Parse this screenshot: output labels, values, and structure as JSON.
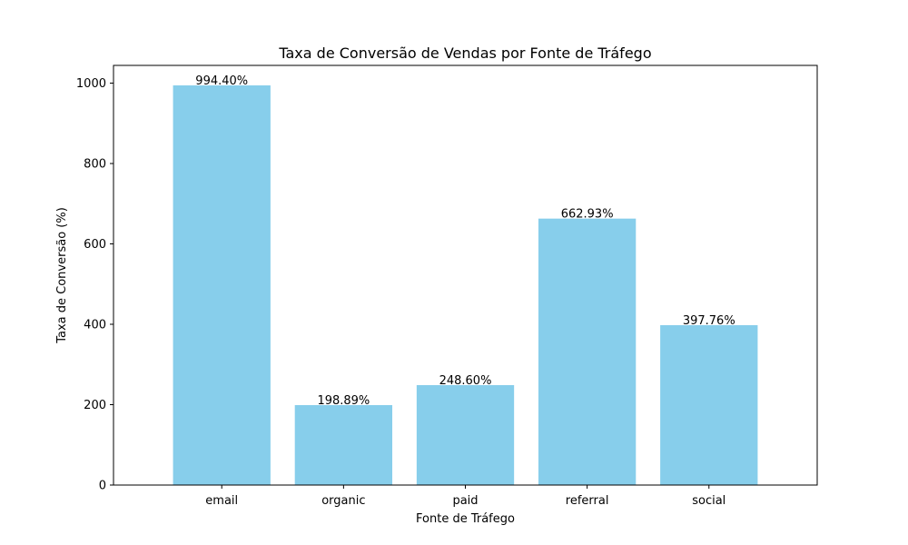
{
  "chart_data": {
    "type": "bar",
    "title": "Taxa de Conversão de Vendas por Fonte de Tráfego",
    "xlabel": "Fonte de Tráfego",
    "ylabel": "Taxa de Conversão (%)",
    "categories": [
      "email",
      "organic",
      "paid",
      "referral",
      "social"
    ],
    "values": [
      994.4,
      198.89,
      248.6,
      662.93,
      397.76
    ],
    "data_labels": [
      "994.40%",
      "198.89%",
      "248.60%",
      "662.93%",
      "397.76%"
    ],
    "yticks": [
      0,
      200,
      400,
      600,
      800,
      1000
    ],
    "ytick_labels": [
      "0",
      "200",
      "400",
      "600",
      "800",
      "1000"
    ],
    "ylim": [
      0,
      1044.12
    ],
    "grid": false,
    "bar_color": "#87ceeb"
  }
}
